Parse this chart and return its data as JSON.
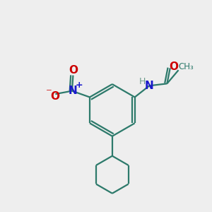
{
  "bg_color": "#eeeeee",
  "bond_color": "#2d7a6b",
  "N_color": "#1a1acc",
  "O_color": "#cc0000",
  "H_color": "#6a9a8a",
  "line_width": 1.6,
  "figsize": [
    3.0,
    3.0
  ],
  "dpi": 100,
  "xlim": [
    0,
    10
  ],
  "ylim": [
    0,
    10
  ]
}
